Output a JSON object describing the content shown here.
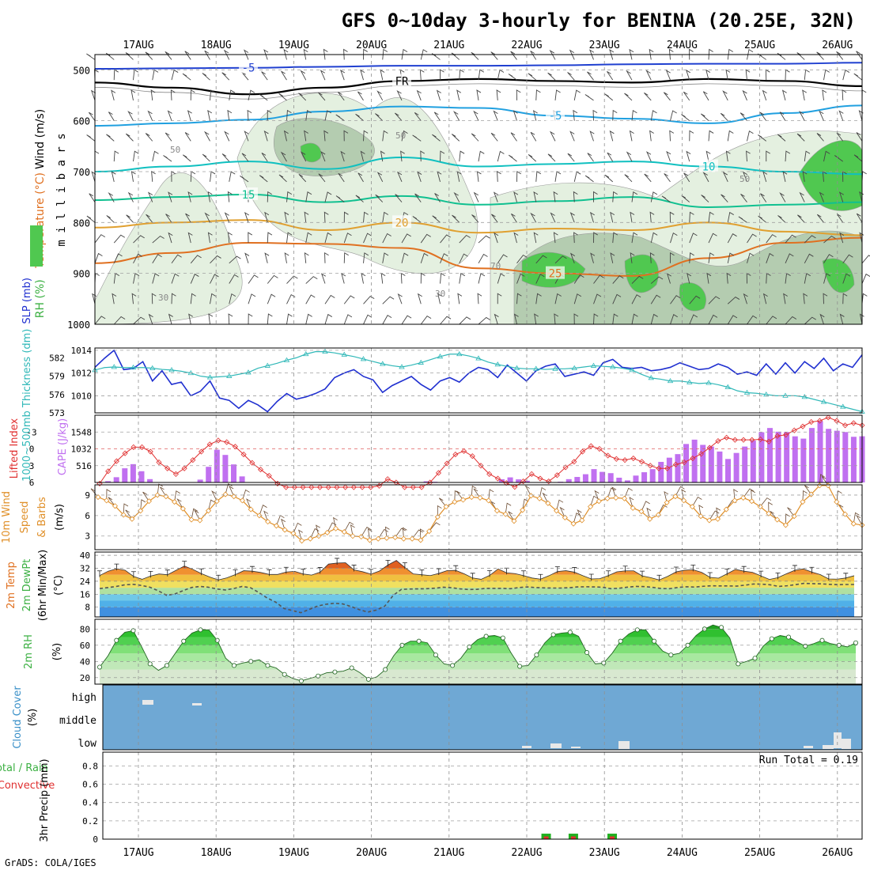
{
  "title": "GFS 0~10day 3-hourly for BENINA (20.25E, 32N)",
  "credit": "GrADS: COLA/IGES",
  "days": [
    "17AUG",
    "18AUG",
    "19AUG",
    "20AUG",
    "21AUG",
    "22AUG",
    "23AUG",
    "24AUG",
    "25AUG",
    "26AUG"
  ],
  "colors": {
    "grid": "#a0a0a0",
    "rh_light": "#e4f0e0",
    "rh_mid": "#b4ccb0",
    "rh_green": "#50c850",
    "cloud": "#6fa8d4",
    "slp": "#2030d0",
    "thick": "#30b8b8",
    "cape": "#c070f0",
    "li": "#e03030",
    "wind": "#e0902a"
  },
  "chart_data": [
    {
      "id": "upper-air",
      "type": "contour",
      "title": "Wind (m/s) / Temperature (°C) / RH (%)",
      "ylabel": "m i l l i b a r s",
      "labels": {
        "wind": "Wind (m/s)",
        "temp": "Temperature (°C)",
        "rh": "RH (%)"
      },
      "yticks": [
        500,
        600,
        700,
        800,
        900,
        1000
      ],
      "ylim": [
        1000,
        470
      ],
      "isotherms": [
        {
          "label": "-5",
          "color": "#2040d0",
          "p": [
            498,
            497,
            496,
            494,
            492,
            492,
            491,
            489,
            488,
            488,
            486
          ]
        },
        {
          "label": "FR",
          "color": "#000000",
          "p": [
            525,
            535,
            548,
            535,
            522,
            518,
            522,
            525,
            518,
            522,
            532
          ]
        },
        {
          "label": "-5",
          "color": "#20a0e0",
          "p": [
            610,
            605,
            598,
            582,
            572,
            575,
            590,
            596,
            605,
            585,
            570
          ]
        },
        {
          "label": "10",
          "color": "#10c0c0",
          "p": [
            700,
            690,
            680,
            695,
            672,
            690,
            685,
            680,
            690,
            700,
            705
          ]
        },
        {
          "label": "15",
          "color": "#10c090",
          "p": [
            756,
            750,
            745,
            760,
            748,
            765,
            758,
            750,
            770,
            765,
            760
          ]
        },
        {
          "label": "20",
          "color": "#e0a030",
          "p": [
            810,
            800,
            795,
            815,
            800,
            820,
            812,
            815,
            800,
            818,
            825
          ]
        },
        {
          "label": "25",
          "color": "#e07020",
          "p": [
            880,
            860,
            840,
            842,
            850,
            890,
            900,
            905,
            870,
            840,
            830
          ]
        }
      ],
      "rh_label_values": [
        "50",
        "30",
        "70"
      ]
    },
    {
      "id": "slp-thickness",
      "type": "line",
      "labels": {
        "slp": "SLP (mb)",
        "thick": "1000~500mb Thickness (dm)"
      },
      "slp_ticks": [
        1010,
        1012,
        1014
      ],
      "thick_ticks": [
        573,
        576,
        579,
        582
      ],
      "slp_range": [
        1008.5,
        1014.2
      ],
      "thick_range": [
        573,
        583.6
      ],
      "series": [
        {
          "name": "SLP",
          "unit": "mb",
          "values": [
            1012.5,
            1013.3,
            1014.0,
            1012.3,
            1012.4,
            1013.0,
            1011.3,
            1012.2,
            1011.0,
            1011.2,
            1010.0,
            1010.4,
            1011.3,
            1009.8,
            1009.6,
            1008.9,
            1009.6,
            1009.2,
            1008.6,
            1009.5,
            1010.2,
            1009.7,
            1009.9,
            1010.2,
            1010.6,
            1011.6,
            1012.0,
            1012.3,
            1011.7,
            1011.4,
            1010.3,
            1010.9,
            1011.3,
            1011.7,
            1011.0,
            1010.5,
            1011.3,
            1011.6,
            1011.2,
            1012.0,
            1012.5,
            1012.3,
            1011.6,
            1012.7,
            1012.0,
            1011.3,
            1012.2,
            1012.6,
            1012.8,
            1011.7,
            1011.9,
            1012.1,
            1011.8,
            1012.9,
            1013.2,
            1012.5,
            1012.4,
            1012.5,
            1012.2,
            1012.3,
            1012.5,
            1012.9,
            1012.6,
            1012.3,
            1012.4,
            1012.8,
            1012.5,
            1011.9,
            1012.1,
            1011.8,
            1012.8,
            1011.9,
            1012.9,
            1012.0,
            1013.0,
            1012.4,
            1013.3,
            1012.2,
            1012.8,
            1012.5,
            1013.6
          ]
        },
        {
          "name": "Thickness",
          "unit": "dm",
          "values": [
            580.0,
            580.4,
            580.5,
            580.4,
            580.4,
            580.4,
            580.3,
            580.1,
            580.0,
            579.8,
            579.5,
            579.0,
            578.8,
            578.9,
            579.0,
            579.3,
            579.6,
            580.3,
            580.7,
            581.1,
            581.6,
            582.0,
            582.6,
            583.0,
            583.0,
            582.8,
            582.5,
            582.2,
            581.8,
            581.4,
            581.0,
            580.7,
            580.5,
            580.8,
            581.2,
            581.7,
            582.2,
            582.6,
            582.6,
            582.3,
            581.9,
            581.3,
            580.9,
            580.6,
            580.3,
            580.2,
            580.2,
            580.1,
            580.2,
            580.2,
            580.3,
            580.5,
            580.7,
            580.6,
            580.5,
            580.3,
            580.0,
            579.3,
            578.7,
            578.5,
            578.2,
            578.2,
            578.0,
            577.8,
            577.9,
            577.6,
            577.2,
            576.6,
            576.3,
            576.2,
            576.0,
            575.8,
            575.8,
            575.8,
            575.6,
            575.2,
            574.8,
            574.4,
            574.0,
            573.6,
            573.2
          ]
        }
      ]
    },
    {
      "id": "li-cape",
      "type": "bar-line",
      "labels": {
        "li": "Lifted Index",
        "cape": "CAPE (J/kg)"
      },
      "li_ticks": [
        "-3",
        "0",
        "3",
        "6"
      ],
      "cape_ticks": [
        "516",
        "1032",
        "1548"
      ],
      "cape_range": [
        0,
        2064
      ],
      "li_range": [
        6,
        -6
      ],
      "series": [
        {
          "name": "Lifted Index",
          "values": [
            6.2,
            4.0,
            2.2,
            0.8,
            -0.3,
            -0.3,
            0.5,
            2.4,
            3.5,
            4.5,
            3.5,
            2.0,
            0.5,
            -0.8,
            -1.5,
            -1.2,
            -0.4,
            1.0,
            2.5,
            3.7,
            4.8,
            6.2,
            7.0,
            7.4,
            7.0,
            7.4,
            7.8,
            7.9,
            7.6,
            7.4,
            7.0,
            7.6,
            7.8,
            6.6,
            5.4,
            6.0,
            7.0,
            7.8,
            7.6,
            6.0,
            4.3,
            2.6,
            1.0,
            0.4,
            1.3,
            3.0,
            4.5,
            5.3,
            6.1,
            6.8,
            5.8,
            4.5,
            5.3,
            5.8,
            4.7,
            3.3,
            2.3,
            0.5,
            -0.5,
            0.0,
            1.2,
            1.8,
            2.0,
            1.7,
            2.3,
            3.0,
            3.5,
            3.5,
            2.8,
            2.4,
            1.7,
            0.9,
            -0.2,
            -1.4,
            -2.0,
            -1.6,
            -1.6,
            -1.6,
            -1.7,
            -1.3,
            -2.3,
            -2.5,
            -3.3,
            -4.0,
            -4.8,
            -5.0,
            -5.6,
            -5.0,
            -4.2,
            -4.6,
            -4.2
          ]
        },
        {
          "name": "CAPE",
          "values": [
            0,
            41,
            161,
            435,
            562,
            345,
            102,
            0,
            0,
            0,
            0,
            0,
            87,
            481,
            1004,
            845,
            554,
            186,
            0,
            0,
            0,
            0,
            0,
            0,
            0,
            0,
            0,
            0,
            0,
            0,
            0,
            0,
            0,
            0,
            0,
            0,
            0,
            0,
            0,
            36,
            21,
            0,
            0,
            0,
            0,
            0,
            0,
            0,
            99,
            156,
            95,
            53,
            0,
            0,
            0,
            22,
            101,
            169,
            253,
            410,
            325,
            286,
            146,
            64,
            211,
            314,
            409,
            632,
            761,
            870,
            1181,
            1314,
            1154,
            1103,
            950,
            721,
            906,
            1102,
            1286,
            1542,
            1672,
            1558,
            1548,
            1416,
            1346,
            1672,
            1882,
            1646,
            1587,
            1547,
            1402,
            1418
          ]
        }
      ]
    },
    {
      "id": "wind10m",
      "type": "line",
      "labels": {
        "a": "10m Wind",
        "b": "Speed",
        "c": "& Barbs",
        "unit": "(m/s)"
      },
      "yticks": [
        3,
        6,
        9
      ],
      "ylim": [
        1,
        10.5
      ],
      "series": [
        {
          "name": "10m Wind Speed",
          "unit": "m/s",
          "values": [
            8.7,
            8.2,
            7.4,
            6.1,
            5.5,
            6.7,
            8.1,
            9.0,
            8.8,
            8.0,
            7.0,
            5.4,
            5.3,
            6.7,
            8.1,
            9.1,
            8.8,
            8.2,
            6.9,
            6.0,
            5.1,
            4.5,
            3.9,
            3.4,
            2.3,
            2.6,
            3.0,
            3.5,
            4.1,
            3.6,
            3.0,
            2.9,
            2.4,
            2.6,
            2.7,
            2.8,
            2.6,
            2.6,
            2.4,
            3.7,
            5.8,
            7.3,
            8.0,
            8.3,
            8.7,
            8.6,
            8.2,
            6.7,
            6.2,
            5.2,
            6.8,
            8.9,
            8.5,
            7.8,
            6.7,
            5.7,
            4.8,
            5.3,
            7.3,
            8.1,
            8.5,
            8.6,
            8.5,
            7.1,
            6.6,
            5.5,
            6.1,
            7.9,
            8.8,
            8.2,
            7.3,
            5.9,
            5.3,
            5.5,
            6.9,
            8.2,
            8.6,
            8.1,
            7.3,
            6.3,
            5.4,
            4.6,
            5.9,
            8.0,
            9.1,
            10.4,
            10.4,
            8.0,
            6.2,
            4.8,
            4.6
          ]
        }
      ]
    },
    {
      "id": "temp2m",
      "type": "area",
      "labels": {
        "a": "2m Temp",
        "b": "2m DewPt",
        "c": "(6hr Min/Max)",
        "unit": "(°C)"
      },
      "yticks": [
        8,
        16,
        24,
        32,
        40
      ],
      "ylim": [
        2,
        42
      ],
      "series": [
        {
          "name": "2m Temp",
          "unit": "°C",
          "values": [
            27.5,
            30.2,
            31.7,
            30.8,
            27.0,
            25.2,
            27.2,
            28.5,
            28.0,
            30.7,
            33.4,
            31.3,
            28.7,
            26.6,
            24.8,
            26.1,
            28.1,
            30.5,
            30.2,
            29.4,
            28.2,
            28.2,
            29.7,
            30.1,
            28.5,
            27.8,
            29.6,
            34.6,
            35.2,
            35.4,
            31.0,
            29.9,
            28.4,
            30.3,
            34.0,
            36.8,
            32.5,
            28.5,
            28.0,
            27.5,
            28.8,
            30.6,
            30.7,
            28.6,
            26.0,
            25.2,
            27.6,
            31.6,
            29.2,
            28.7,
            27.5,
            26.0,
            25.3,
            27.4,
            30.0,
            30.5,
            29.6,
            27.4,
            25.4,
            25.6,
            27.5,
            29.8,
            30.4,
            30.4,
            27.3,
            26.2,
            24.8,
            27.0,
            29.8,
            30.8,
            31.1,
            29.5,
            26.4,
            25.9,
            28.6,
            31.3,
            30.2,
            29.5,
            27.3,
            25.1,
            26.2,
            28.6,
            30.8,
            31.6,
            29.7,
            28.1,
            25.4,
            25.3,
            26.0,
            27.4
          ]
        },
        {
          "name": "2m DewPt",
          "unit": "°C",
          "values": [
            19.5,
            20.1,
            20.8,
            21.8,
            22.1,
            21.4,
            20.3,
            18.1,
            15.3,
            16.2,
            18.3,
            20.2,
            20.8,
            20.3,
            19.2,
            18.6,
            19.5,
            20.8,
            20.0,
            17.0,
            13.6,
            11.1,
            7.2,
            5.9,
            4.6,
            6.6,
            8.7,
            9.8,
            10.4,
            10.0,
            8.4,
            6.4,
            5.0,
            6.2,
            8.6,
            15.2,
            19.0,
            19.2,
            19.3,
            19.4,
            19.7,
            20.3,
            20.0,
            19.3,
            18.9,
            19.0,
            19.6,
            19.6,
            19.6,
            19.4,
            20.1,
            20.5,
            20.1,
            19.9,
            19.8,
            19.8,
            20.0,
            20.5,
            20.6,
            20.5,
            20.3,
            19.4,
            19.7,
            20.4,
            20.8,
            20.7,
            20.2,
            19.5,
            19.4,
            20.2,
            20.6,
            20.4,
            20.9,
            21.2,
            21.1,
            21.1,
            21.0,
            21.6,
            22.3,
            22.2,
            21.8,
            20.8,
            21.2,
            21.9,
            22.7,
            22.5,
            22.4,
            22.1,
            21.9,
            22.0,
            22.0
          ]
        }
      ]
    },
    {
      "id": "rh2m",
      "type": "area",
      "labels": {
        "a": "2m RH",
        "unit": "(%)"
      },
      "yticks": [
        20,
        40,
        60,
        80
      ],
      "ylim": [
        12,
        92
      ],
      "series": [
        {
          "name": "2m RH",
          "unit": "%",
          "values": [
            33,
            47,
            66,
            76,
            78,
            58,
            37,
            29,
            35,
            50,
            65,
            75,
            79,
            79,
            66,
            44,
            35,
            38,
            40,
            42,
            35,
            32,
            24,
            19,
            16,
            19,
            22,
            26,
            27,
            28,
            32,
            26,
            18,
            21,
            30,
            47,
            60,
            65,
            65,
            63,
            48,
            37,
            35,
            44,
            58,
            67,
            71,
            72,
            69,
            50,
            34,
            35,
            48,
            63,
            73,
            75,
            76,
            71,
            51,
            37,
            38,
            50,
            65,
            74,
            79,
            79,
            65,
            53,
            48,
            50,
            60,
            72,
            80,
            85,
            82,
            69,
            37,
            40,
            44,
            59,
            68,
            72,
            70,
            64,
            59,
            62,
            66,
            62,
            60,
            58,
            63
          ]
        }
      ]
    },
    {
      "id": "cloud",
      "type": "bar",
      "labels": {
        "a": "Cloud Cover",
        "unit": "(%)"
      },
      "levels": [
        "high",
        "middle",
        "low"
      ]
    },
    {
      "id": "precip",
      "type": "bar",
      "labels": {
        "a": "Total / Rain",
        "b": "Convective",
        "c": "3hr Precip (mm)"
      },
      "run_total": "Run Total = 0.19",
      "yticks": [
        "0",
        "0.2",
        "0.4",
        "0.6",
        "0.8"
      ],
      "ylim": [
        0,
        0.95
      ],
      "bars": [
        {
          "day": 5.25,
          "total": 0.06,
          "conv": 0.03
        },
        {
          "day": 5.6,
          "total": 0.06,
          "conv": 0.03
        },
        {
          "day": 6.1,
          "total": 0.06,
          "conv": 0.03
        }
      ]
    }
  ]
}
